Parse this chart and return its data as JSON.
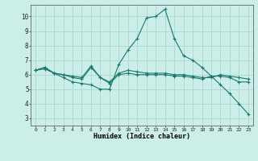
{
  "xlabel": "Humidex (Indice chaleur)",
  "background_color": "#cceee8",
  "grid_color": "#aad8d0",
  "line_color": "#1a7a6e",
  "xlim": [
    -0.5,
    23.5
  ],
  "ylim": [
    2.5,
    10.8
  ],
  "yticks": [
    3,
    4,
    5,
    6,
    7,
    8,
    9,
    10
  ],
  "xticks": [
    0,
    1,
    2,
    3,
    4,
    5,
    6,
    7,
    8,
    9,
    10,
    11,
    12,
    13,
    14,
    15,
    16,
    17,
    18,
    19,
    20,
    21,
    22,
    23
  ],
  "series": [
    {
      "x": [
        0,
        1,
        2,
        3,
        4,
        5,
        6,
        7,
        8,
        9,
        10,
        11,
        12,
        13,
        14,
        15,
        16,
        17,
        18,
        19,
        20,
        21,
        22,
        23
      ],
      "y": [
        6.3,
        6.5,
        6.1,
        5.8,
        5.5,
        5.4,
        5.3,
        5.0,
        5.0,
        6.7,
        7.7,
        8.5,
        9.9,
        10.0,
        10.5,
        8.5,
        7.3,
        7.0,
        6.5,
        5.9,
        5.3,
        4.7,
        4.0,
        3.3
      ]
    },
    {
      "x": [
        0,
        1,
        2,
        3,
        4,
        5,
        6,
        7,
        8,
        9,
        10,
        11,
        12,
        13,
        14,
        15,
        16,
        17,
        18,
        19,
        20,
        21,
        22,
        23
      ],
      "y": [
        6.3,
        6.4,
        6.1,
        6.0,
        5.8,
        5.7,
        6.5,
        5.8,
        5.4,
        6.0,
        6.1,
        6.0,
        6.0,
        6.0,
        6.0,
        5.9,
        5.9,
        5.8,
        5.7,
        5.9,
        5.9,
        5.8,
        5.5,
        5.5
      ]
    },
    {
      "x": [
        0,
        1,
        2,
        3,
        4,
        5,
        6,
        7,
        8,
        9,
        10,
        11,
        12,
        13,
        14,
        15,
        16,
        17,
        18,
        19,
        20,
        21,
        22,
        23
      ],
      "y": [
        6.3,
        6.5,
        6.1,
        6.0,
        5.9,
        5.8,
        6.6,
        5.8,
        5.5,
        6.1,
        6.3,
        6.2,
        6.1,
        6.1,
        6.1,
        6.0,
        6.0,
        5.9,
        5.8,
        5.8,
        6.0,
        5.9,
        5.8,
        5.7
      ]
    }
  ]
}
